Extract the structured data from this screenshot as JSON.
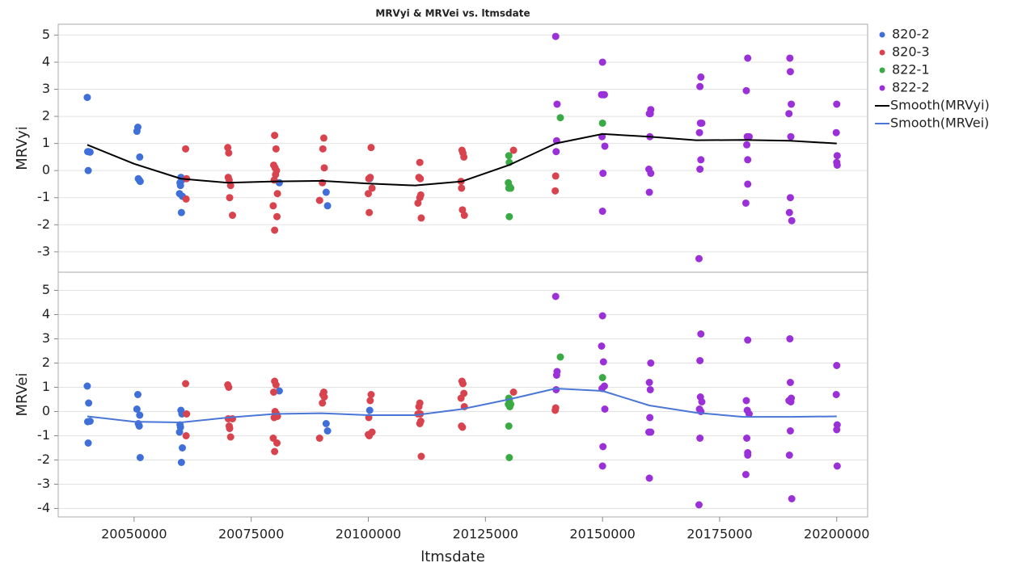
{
  "chart_data": {
    "type": "scatter",
    "title": "MRVyi & MRVei vs. ltmsdate",
    "x_label": "ltmsdate",
    "xlim": [
      20033800,
      20206600
    ],
    "xticks": [
      20050000,
      20075000,
      20100000,
      20125000,
      20150000,
      20175000,
      20200000
    ],
    "grid": true,
    "legend": "right",
    "panels": [
      {
        "y_label": "MRVyi",
        "ylim": [
          -3.75,
          5.4
        ],
        "yticks": [
          -3,
          -2,
          -1,
          0,
          1,
          2,
          3,
          4,
          5
        ],
        "smooth": {
          "name": "Smooth(MRVyi)",
          "color": "#000000",
          "x": [
            20040000,
            20050000,
            20060000,
            20070000,
            20080000,
            20090000,
            20100000,
            20110000,
            20120000,
            20130000,
            20140000,
            20150000,
            20160000,
            20170000,
            20180000,
            20190000,
            20200000
          ],
          "values": [
            0.95,
            0.25,
            -0.3,
            -0.45,
            -0.4,
            -0.38,
            -0.48,
            -0.55,
            -0.4,
            0.2,
            1.0,
            1.35,
            1.25,
            1.12,
            1.13,
            1.1,
            1.0
          ]
        }
      },
      {
        "y_label": "MRVei",
        "ylim": [
          -4.35,
          5.75
        ],
        "yticks": [
          -4,
          -3,
          -2,
          -1,
          0,
          1,
          2,
          3,
          4,
          5
        ],
        "smooth": {
          "name": "Smooth(MRVei)",
          "color": "#4a76d6",
          "x": [
            20040000,
            20050000,
            20060000,
            20070000,
            20080000,
            20090000,
            20100000,
            20110000,
            20120000,
            20130000,
            20140000,
            20150000,
            20160000,
            20170000,
            20180000,
            20190000,
            20200000
          ],
          "values": [
            -0.2,
            -0.42,
            -0.45,
            -0.25,
            -0.1,
            -0.07,
            -0.15,
            -0.15,
            0.1,
            0.5,
            0.95,
            0.85,
            0.25,
            -0.05,
            -0.22,
            -0.22,
            -0.2
          ]
        }
      }
    ],
    "series": [
      {
        "name": "820-2",
        "color": "#3f6fd8",
        "x": [
          20040000,
          20040300,
          20040600,
          20040200,
          20040100,
          20050800,
          20050600,
          20051200,
          20050900,
          20051100,
          20051300,
          20060000,
          20060200,
          20059800,
          20059900,
          20059700,
          20060300,
          20060100,
          20081000,
          20091000,
          20091300,
          20100300
        ],
        "values": [
          [
            2.7,
            0.7,
            0.68,
            0.0,
            0.7,
            1.6,
            1.45,
            0.5,
            -0.3,
            -0.35,
            -0.4,
            -0.25,
            -0.35,
            -0.45,
            -0.55,
            -0.85,
            -0.95,
            -1.55,
            -0.45,
            -0.8,
            -1.3,
            -0.3
          ],
          [
            1.05,
            0.35,
            -0.4,
            -1.3,
            -0.42,
            0.7,
            0.1,
            -0.15,
            -0.5,
            -0.6,
            -1.9,
            0.05,
            -0.1,
            -0.55,
            -0.65,
            -0.85,
            -1.5,
            -2.1,
            0.85,
            -0.5,
            -0.8,
            0.05
          ]
        ]
      },
      {
        "name": "820-3",
        "color": "#d9434e",
        "x": [
          20061000,
          20061200,
          20061100,
          20070000,
          20070200,
          20070100,
          20070300,
          20070400,
          20070600,
          20071000,
          20080000,
          20080300,
          20079800,
          20080100,
          20080400,
          20080200,
          20079900,
          20080600,
          20079700,
          20080500,
          20080000,
          20090500,
          20090300,
          20090600,
          20090200,
          20089600,
          20100600,
          20100400,
          20100100,
          20100800,
          20100000,
          20100200,
          20111000,
          20110800,
          20111100,
          20111200,
          20111000,
          20110600,
          20111300,
          20120000,
          20120200,
          20120400,
          20119800,
          20119900,
          20120100,
          20120500,
          20131000,
          20140000,
          20139900
        ],
        "values": [
          [
            0.8,
            -0.3,
            -1.05,
            0.85,
            0.65,
            -0.25,
            -0.35,
            -1.0,
            -0.55,
            -1.65,
            1.3,
            0.8,
            0.2,
            0.1,
            0.0,
            -0.15,
            -0.35,
            -0.85,
            -1.3,
            -1.7,
            -2.2,
            1.2,
            0.8,
            0.1,
            -0.45,
            -1.1,
            0.85,
            -0.25,
            -0.3,
            -0.65,
            -0.85,
            -1.55,
            0.3,
            -0.25,
            -0.3,
            -0.9,
            -1.0,
            -1.2,
            -1.75,
            0.75,
            0.65,
            0.5,
            -0.4,
            -0.65,
            -1.45,
            -1.65,
            0.75,
            -0.2,
            -0.75
          ],
          [
            1.15,
            -0.1,
            -1.0,
            1.1,
            1.0,
            -0.3,
            -0.6,
            -0.7,
            -1.05,
            -0.3,
            1.25,
            1.1,
            0.8,
            0.0,
            -0.1,
            -0.15,
            -0.25,
            -0.2,
            -1.1,
            -1.3,
            -1.65,
            0.8,
            0.7,
            0.6,
            0.35,
            -1.1,
            0.7,
            0.45,
            -0.25,
            -0.85,
            -0.95,
            -1.0,
            0.35,
            0.2,
            -0.1,
            -0.4,
            -0.5,
            -0.1,
            -1.85,
            1.25,
            1.15,
            0.75,
            0.55,
            -0.6,
            -0.65,
            0.2,
            0.8,
            0.15,
            0.05
          ]
        ]
      },
      {
        "name": "822-1",
        "color": "#3aaa44",
        "x": [
          20130000,
          20130100,
          20129900,
          20130200,
          20130400,
          20130000,
          20130100,
          20141000,
          20150000
        ],
        "values": [
          [
            0.55,
            0.3,
            -0.45,
            -0.6,
            -0.65,
            -0.65,
            -1.7,
            1.95,
            1.75
          ],
          [
            0.55,
            0.45,
            0.3,
            0.2,
            0.3,
            -0.6,
            -1.9,
            2.25,
            1.4
          ]
        ]
      },
      {
        "name": "822-2",
        "color": "#9b30d9",
        "x": [
          20140000,
          20140300,
          20140200,
          20140100,
          20150000,
          20149800,
          20150200,
          20150400,
          20149900,
          20150500,
          20150100,
          20150000,
          20160300,
          20160000,
          20160200,
          20160100,
          20159900,
          20160300,
          20160000,
          20171000,
          20170800,
          20170900,
          20171200,
          20170700,
          20171000,
          20170800,
          20170600,
          20181000,
          20180700,
          20180900,
          20181300,
          20180800,
          20181000,
          20181000,
          20180600,
          20190000,
          20190100,
          20190300,
          20189800,
          20190200,
          20190100,
          20189900,
          20190400,
          20200000,
          20199900,
          20200100,
          20200000,
          20200100
        ],
        "values": [
          [
            4.95,
            2.45,
            1.1,
            0.7,
            4.0,
            2.8,
            2.8,
            2.8,
            1.25,
            0.9,
            -0.1,
            -1.5,
            2.25,
            2.1,
            2.1,
            1.25,
            0.05,
            -0.1,
            -0.8,
            3.45,
            3.1,
            1.75,
            1.75,
            1.4,
            0.4,
            0.05,
            -3.25,
            4.15,
            2.95,
            1.25,
            1.25,
            0.95,
            0.4,
            -0.5,
            -1.2,
            4.15,
            3.65,
            2.45,
            2.1,
            1.25,
            -1.0,
            -1.55,
            -1.85,
            2.45,
            1.4,
            0.55,
            0.3,
            0.2
          ],
          [
            4.75,
            1.65,
            1.5,
            0.9,
            3.95,
            2.7,
            2.05,
            1.05,
            0.95,
            0.1,
            -1.45,
            -2.25,
            2.0,
            1.2,
            0.9,
            -0.25,
            -0.85,
            -0.85,
            -2.75,
            3.2,
            2.1,
            0.6,
            0.4,
            0.1,
            0.0,
            -1.1,
            -3.85,
            2.95,
            0.45,
            0.05,
            -0.1,
            -1.1,
            -1.7,
            -1.8,
            -2.6,
            3.0,
            1.2,
            0.55,
            0.45,
            0.4,
            -0.8,
            -1.8,
            -3.6,
            1.9,
            0.7,
            -0.55,
            -0.75,
            -2.25
          ]
        ]
      }
    ]
  }
}
